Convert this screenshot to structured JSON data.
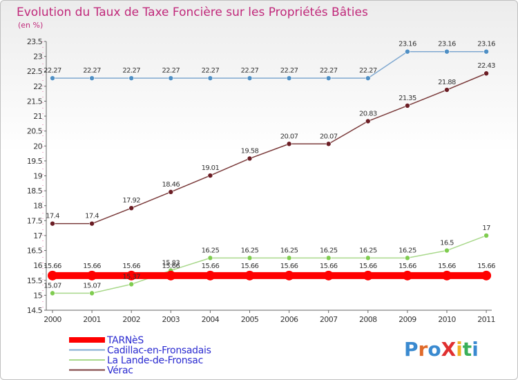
{
  "chart_data": {
    "type": "line",
    "title": "Evolution du Taux de Taxe Foncière sur les Propriétés Bâties",
    "unit_label": "(en %)",
    "x": [
      "2000",
      "2001",
      "2002",
      "2003",
      "2004",
      "2005",
      "2006",
      "2007",
      "2008",
      "2009",
      "2010",
      "2011"
    ],
    "ylim": [
      14.5,
      23.5
    ],
    "yticks": [
      "14.5",
      "15",
      "15.5",
      "16",
      "16.5",
      "17",
      "17.5",
      "18",
      "18.5",
      "19",
      "19.5",
      "20",
      "20.5",
      "21",
      "21.5",
      "22",
      "22.5",
      "23",
      "23.5"
    ],
    "grid": false,
    "legend_position": "bottom-left",
    "series": [
      {
        "name": "TARNèS",
        "color": "#ff0000",
        "values": [
          15.66,
          15.66,
          15.66,
          15.66,
          15.66,
          15.66,
          15.66,
          15.66,
          15.66,
          15.66,
          15.66,
          15.66
        ],
        "labels": [
          "15.66",
          "15.66",
          "15.66",
          "15.66",
          "15.66",
          "15.66",
          "15.66",
          "15.66",
          "15.66",
          "15.66",
          "15.66",
          "15.66"
        ]
      },
      {
        "name": "Cadillac-en-Fronsadais",
        "color": "#7fa8d0",
        "marker_color": "#4f8fc4",
        "values": [
          22.27,
          22.27,
          22.27,
          22.27,
          22.27,
          22.27,
          22.27,
          22.27,
          22.27,
          23.16,
          23.16,
          23.16
        ],
        "labels": [
          "22.27",
          "22.27",
          "22.27",
          "22.27",
          "22.27",
          "22.27",
          "22.27",
          "22.27",
          "22.27",
          "23.16",
          "23.16",
          "23.16"
        ]
      },
      {
        "name": "La Lande-de-Fronsac",
        "color": "#a8d88a",
        "marker_color": "#7fcc4f",
        "values": [
          15.07,
          15.07,
          15.37,
          15.83,
          16.25,
          16.25,
          16.25,
          16.25,
          16.25,
          16.25,
          16.5,
          17
        ],
        "labels": [
          "15.07",
          "15.07",
          "15.37",
          "15.83",
          "16.25",
          "16.25",
          "16.25",
          "16.25",
          "16.25",
          "16.25",
          "16.5",
          "17"
        ]
      },
      {
        "name": "Vérac",
        "color": "#7a3a3a",
        "marker_color": "#6b1d24",
        "values": [
          17.4,
          17.4,
          17.92,
          18.46,
          19.01,
          19.58,
          20.07,
          20.07,
          20.83,
          21.35,
          21.88,
          22.43
        ],
        "labels": [
          "17.4",
          "17.4",
          "17.92",
          "18.46",
          "19.01",
          "19.58",
          "20.07",
          "20.07",
          "20.83",
          "21.35",
          "21.88",
          "22.43"
        ]
      }
    ]
  },
  "brand": {
    "logo_text": "ProXiti",
    "letter_colors": [
      "#3a8ad0",
      "#e06a2a",
      "#3a8ad0",
      "#e03030",
      "#f0b020",
      "#3ab05a",
      "#3a8ad0"
    ]
  }
}
